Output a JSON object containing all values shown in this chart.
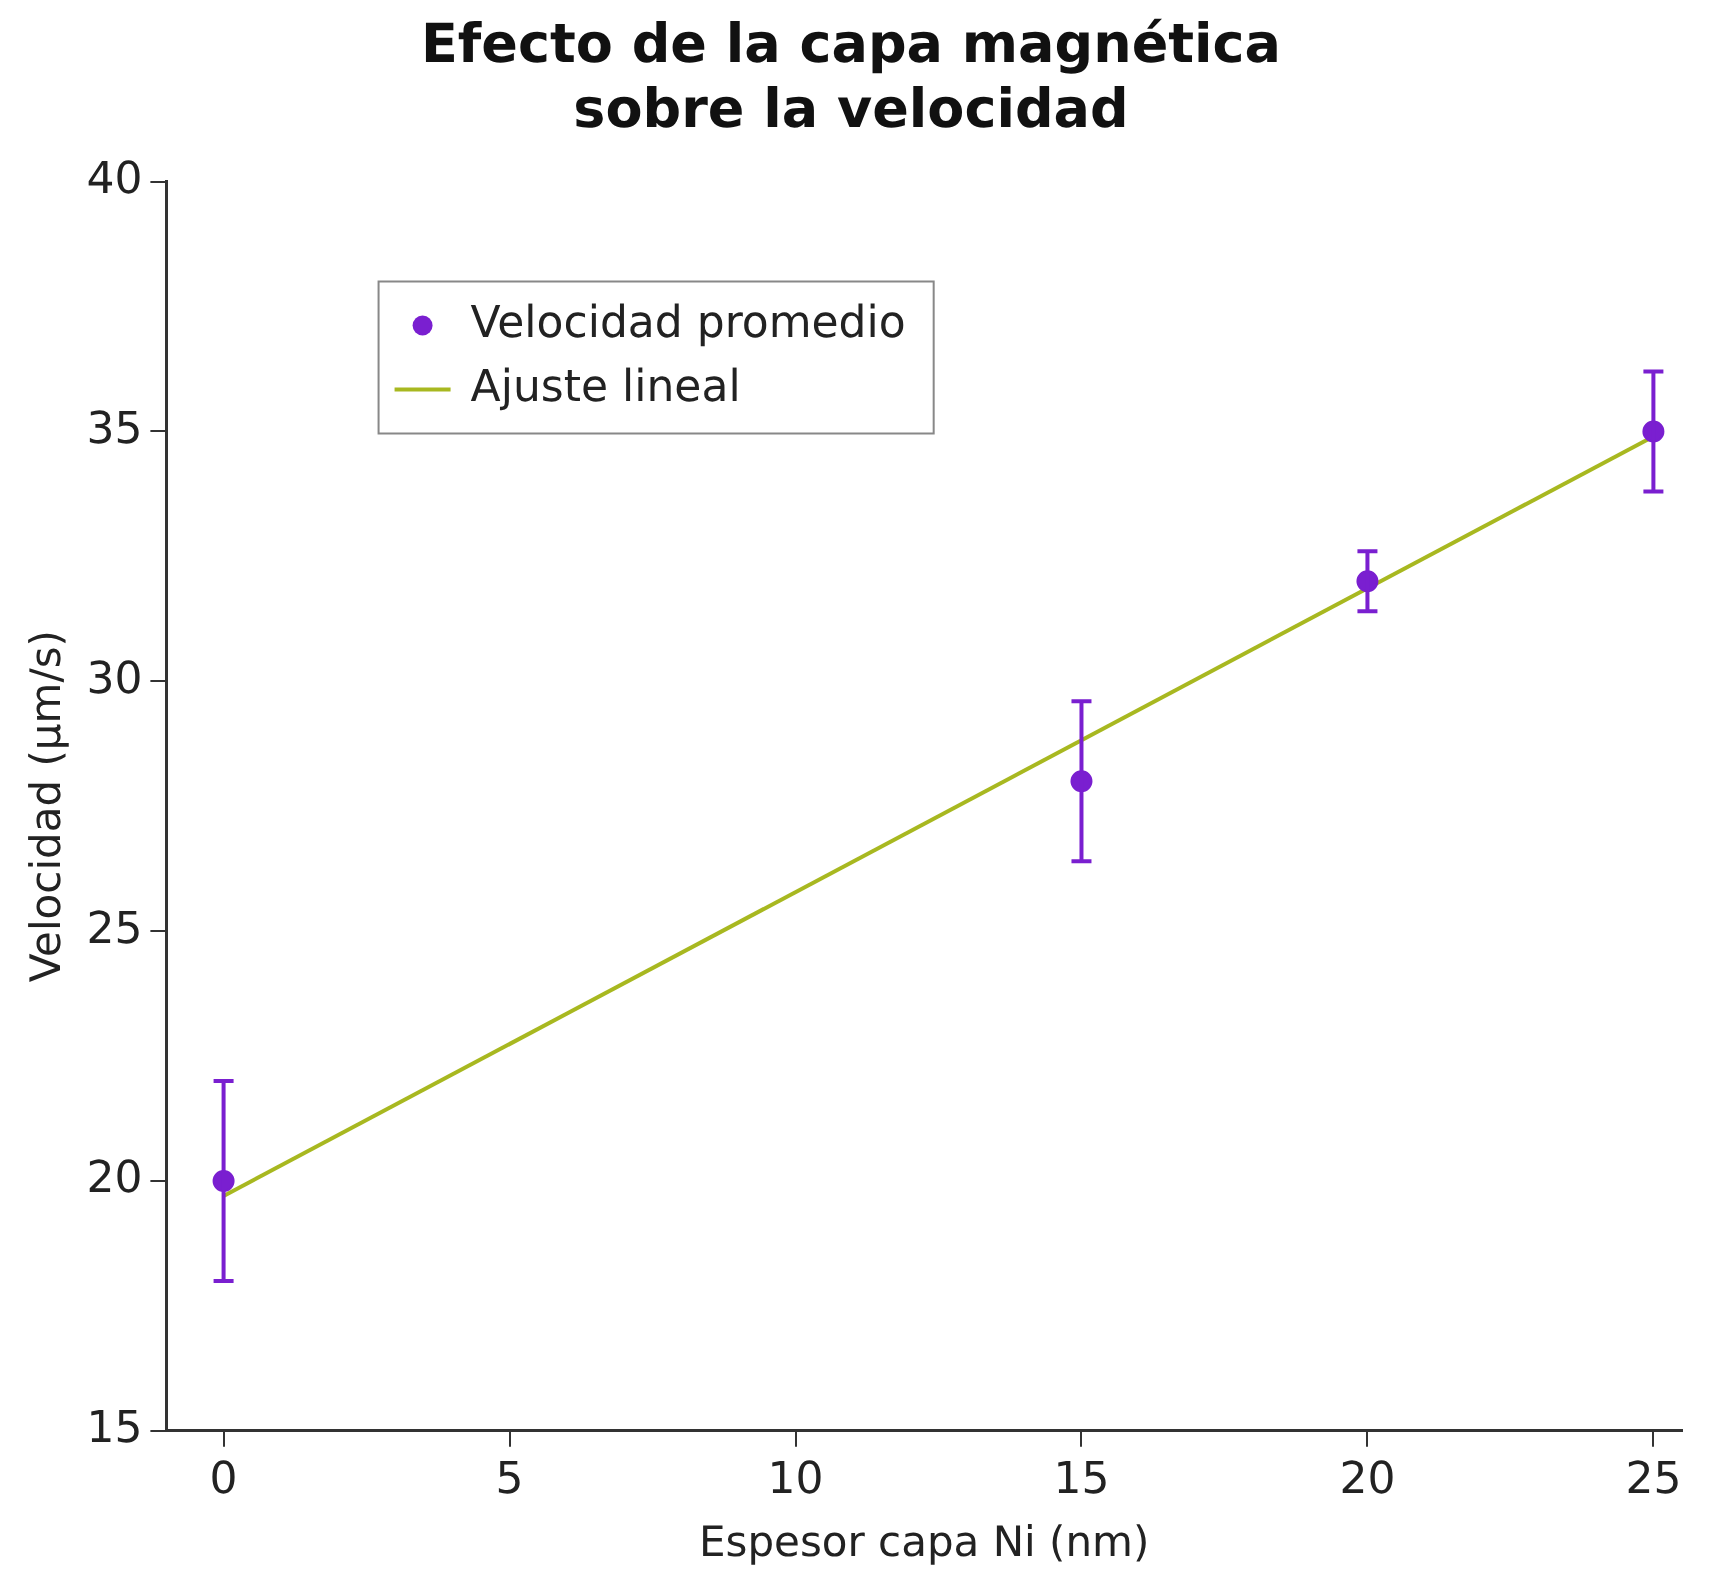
{
  "chart_data": {
    "type": "scatter",
    "title": "Efecto de la capa magnética\nsobre la velocidad",
    "xlabel": "Espesor capa Ni (nm)",
    "ylabel": "Velocidad (µm/s)",
    "xlim": [
      -1,
      25.5
    ],
    "xticks": [
      0,
      5,
      10,
      15,
      20,
      25
    ],
    "ylim": [
      15,
      40
    ],
    "yticks": [
      15,
      20,
      25,
      30,
      35,
      40
    ],
    "grid": false,
    "legend": "top left",
    "series": [
      {
        "name": "Velocidad promedio",
        "color": "#7a1fd0",
        "marker": "circle",
        "x": [
          0,
          15,
          20,
          25
        ],
        "values": [
          20,
          28,
          32,
          35
        ],
        "errors": [
          2,
          1.6,
          0.6,
          1.2
        ]
      },
      {
        "name": "Ajuste lineal",
        "type": "line",
        "color": "#a8b820",
        "marker": "none",
        "line_style": "solid",
        "x": [
          0,
          25
        ],
        "values": [
          19.7,
          34.9
        ]
      }
    ]
  }
}
